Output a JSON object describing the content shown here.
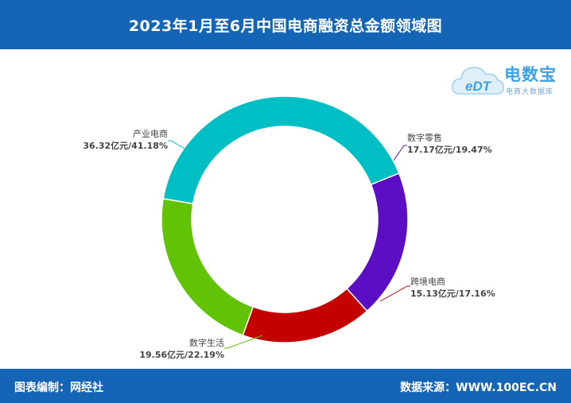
{
  "header": {
    "title": "2023年1月至6月中国电商融资总金额领域图"
  },
  "logo": {
    "mark": "eDT",
    "name": "电数宝",
    "subtitle": "电商大数据库"
  },
  "footer": {
    "left": "图表编制：网经社",
    "right": "数据来源：WWW.100EC.CN"
  },
  "colors": {
    "header_bg": "#1565b6",
    "数字零售": "#5b0ec4",
    "跨境电商": "#c40000",
    "数字生活": "#62c306",
    "产业电商": "#00bfc4"
  },
  "chart_data": {
    "type": "pie",
    "donut": true,
    "title": "2023年1月至6月中国电商融资总金额领域图",
    "slices": [
      {
        "name": "数字零售",
        "value": 17.17,
        "label": "17.17亿元/19.47%",
        "color": "#5b0ec4"
      },
      {
        "name": "跨境电商",
        "value": 15.13,
        "label": "15.13亿元/17.16%",
        "color": "#c40000"
      },
      {
        "name": "数字生活",
        "value": 19.56,
        "label": "19.56亿元/22.19%",
        "color": "#62c306"
      },
      {
        "name": "产业电商",
        "value": 36.32,
        "label": "36.32亿元/41.18%",
        "color": "#00bfc4"
      }
    ]
  }
}
